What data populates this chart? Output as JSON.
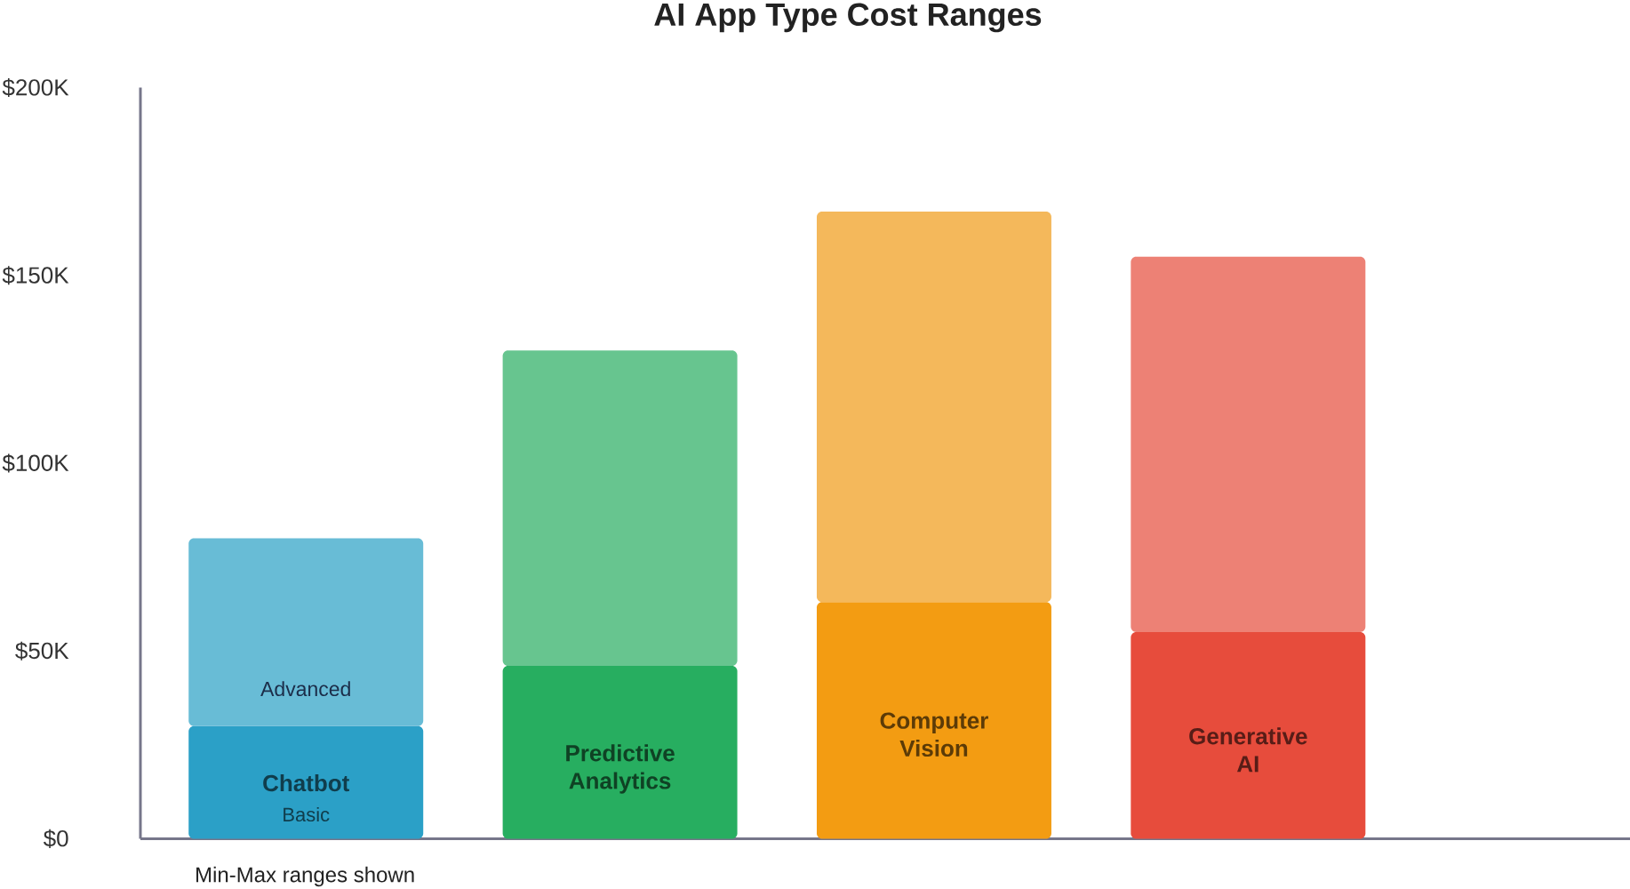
{
  "chart_data": {
    "type": "bar",
    "title": "AI App Type Cost Ranges",
    "categories": [
      "Chatbot",
      "Predictive Analytics",
      "Computer Vision",
      "Generative AI"
    ],
    "stacked": true,
    "series": [
      {
        "name": "Basic",
        "colors": [
          "#2ba0c7",
          "#27ae60",
          "#f39c12",
          "#e74c3c"
        ],
        "values": [
          30,
          46,
          63,
          55
        ]
      },
      {
        "name": "Advanced",
        "colors": [
          "#68bcd6",
          "#67c58f",
          "#f4b85b",
          "#ed8175"
        ],
        "values": [
          50,
          84,
          104,
          100
        ]
      }
    ],
    "ylim": [
      0,
      200
    ],
    "yticks": [
      {
        "value": 0,
        "label": "$0"
      },
      {
        "value": 50,
        "label": "$50K"
      },
      {
        "value": 100,
        "label": "$100K"
      },
      {
        "value": 150,
        "label": "$150K"
      },
      {
        "value": 200,
        "label": "$200K"
      }
    ],
    "annotations": [
      "Min-Max ranges shown"
    ]
  }
}
